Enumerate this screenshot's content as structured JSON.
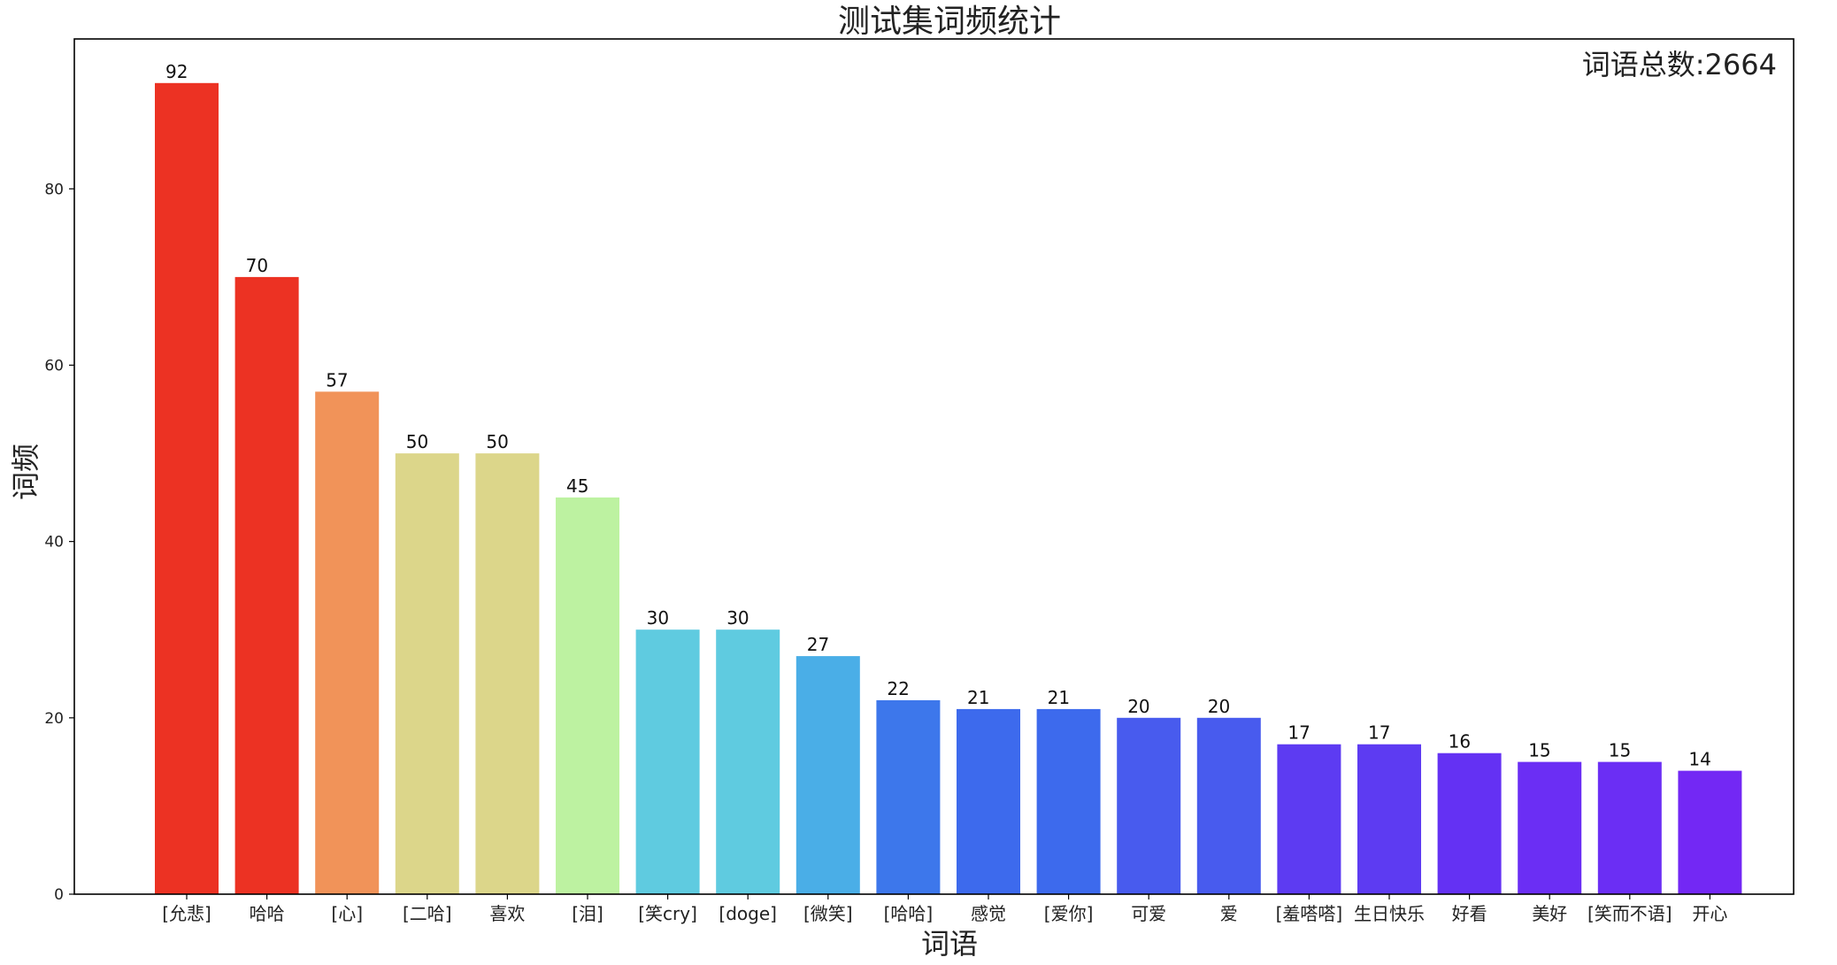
{
  "chart_data": {
    "type": "bar",
    "title": "测试集词频统计",
    "xlabel": "词语",
    "ylabel": "词频",
    "annotation": "词语总数:2664",
    "ylim": [
      0,
      97
    ],
    "yticks": [
      0,
      20,
      40,
      60,
      80
    ],
    "grid": false,
    "categories": [
      "[允悲]",
      "哈哈",
      "[心]",
      "[二哈]",
      "喜欢",
      "[泪]",
      "[笑cry]",
      "[doge]",
      "[微笑]",
      "[哈哈]",
      "感觉",
      "[爱你]",
      "可爱",
      "爱",
      "[羞嗒嗒]",
      "生日快乐",
      "好看",
      "美好",
      "[笑而不语]",
      "开心"
    ],
    "values": [
      92,
      70,
      57,
      50,
      50,
      45,
      30,
      30,
      27,
      22,
      21,
      21,
      20,
      20,
      17,
      17,
      16,
      15,
      15,
      14
    ],
    "colors": [
      "#ec3223",
      "#ec3223",
      "#f19359",
      "#dcd68a",
      "#dcd68a",
      "#bdf2a1",
      "#5fcbe0",
      "#5fcbe0",
      "#4aaee7",
      "#3d77eb",
      "#3d6aed",
      "#3d6aed",
      "#485bee",
      "#485bee",
      "#5d3bf2",
      "#5d3bf2",
      "#6431f3",
      "#6b2ef4",
      "#6b2ef4",
      "#7328f4"
    ]
  }
}
